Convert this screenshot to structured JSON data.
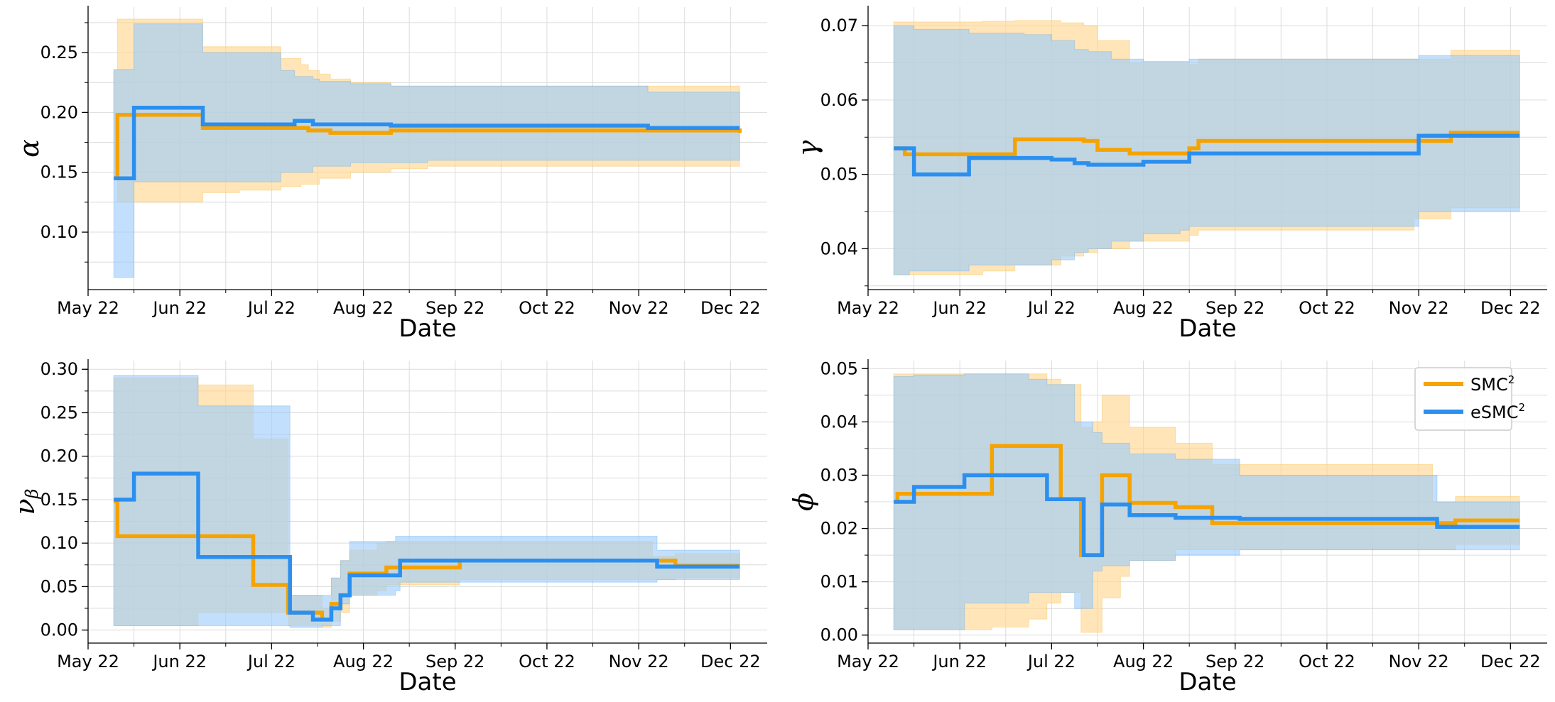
{
  "colors": {
    "smc2": "#f5a300",
    "esmc2": "#2b8fef",
    "smc2_band": "#ffd58a",
    "esmc2_band": "#9ccdfb",
    "grid": "#dcdcdc"
  },
  "legend": [
    {
      "base": "SMC",
      "sup": "2",
      "series": "SMC2"
    },
    {
      "base": "eSMC",
      "sup": "2",
      "series": "eSMC2"
    }
  ],
  "chart_data": [
    {
      "id": "alpha",
      "type": "line",
      "ylabel": "α",
      "ylabel_sub": "",
      "xlabel": "Date",
      "x_ticks": [
        "May 22",
        "Jun 22",
        "Jul 22",
        "Aug 22",
        "Sep 22",
        "Oct 22",
        "Nov 22",
        "Dec 22"
      ],
      "xlim": [
        0,
        7.4
      ],
      "ylim": [
        0.052,
        0.288
      ],
      "y_ticks": [
        0.1,
        0.15,
        0.2,
        0.25
      ],
      "y_tick_labels": [
        "0.10",
        "0.15",
        "0.20",
        "0.25"
      ],
      "series": [
        {
          "name": "SMC2",
          "x": [
            0.28,
            0.32,
            0.5,
            1.2,
            1.25,
            1.65,
            2.1,
            2.32,
            2.4,
            2.52,
            2.64,
            2.86,
            3.3,
            3.7,
            7.1
          ],
          "y": [
            0.145,
            0.198,
            0.198,
            0.198,
            0.187,
            0.187,
            0.187,
            0.187,
            0.185,
            0.185,
            0.183,
            0.183,
            0.185,
            0.185,
            0.183
          ],
          "lower": [
            0.145,
            0.125,
            0.125,
            0.125,
            0.133,
            0.135,
            0.138,
            0.14,
            0.14,
            0.145,
            0.145,
            0.15,
            0.153,
            0.155,
            0.155
          ],
          "upper": [
            0.235,
            0.278,
            0.278,
            0.278,
            0.255,
            0.255,
            0.245,
            0.24,
            0.235,
            0.232,
            0.228,
            0.225,
            0.222,
            0.222,
            0.222
          ]
        },
        {
          "name": "eSMC2",
          "x": [
            0.28,
            0.46,
            0.5,
            1.2,
            1.25,
            1.65,
            2.1,
            2.25,
            2.45,
            2.52,
            2.86,
            3.3,
            3.7,
            6.1,
            7.1
          ],
          "y": [
            0.145,
            0.145,
            0.204,
            0.204,
            0.19,
            0.19,
            0.19,
            0.193,
            0.19,
            0.19,
            0.19,
            0.189,
            0.189,
            0.187,
            0.187
          ],
          "lower": [
            0.062,
            0.062,
            0.142,
            0.142,
            0.142,
            0.142,
            0.15,
            0.15,
            0.155,
            0.155,
            0.158,
            0.158,
            0.16,
            0.16,
            0.16
          ],
          "upper": [
            0.236,
            0.236,
            0.274,
            0.274,
            0.25,
            0.25,
            0.235,
            0.23,
            0.228,
            0.226,
            0.224,
            0.222,
            0.222,
            0.217,
            0.217
          ]
        }
      ]
    },
    {
      "id": "gamma",
      "type": "line",
      "ylabel": "γ",
      "ylabel_sub": "",
      "xlabel": "Date",
      "x_ticks": [
        "May 22",
        "Jun 22",
        "Jul 22",
        "Aug 22",
        "Sep 22",
        "Oct 22",
        "Nov 22",
        "Dec 22"
      ],
      "xlim": [
        0,
        7.4
      ],
      "ylim": [
        0.0345,
        0.0725
      ],
      "y_ticks": [
        0.04,
        0.05,
        0.06,
        0.07
      ],
      "y_tick_labels": [
        "0.04",
        "0.05",
        "0.06",
        "0.07"
      ],
      "series": [
        {
          "name": "SMC2",
          "x": [
            0.28,
            0.4,
            1.25,
            1.6,
            2.1,
            2.35,
            2.5,
            2.85,
            3.5,
            3.6,
            5.95,
            6.35,
            7.1
          ],
          "y": [
            0.0535,
            0.0527,
            0.0527,
            0.0547,
            0.0547,
            0.0545,
            0.0533,
            0.0528,
            0.0535,
            0.0545,
            0.0545,
            0.0556,
            0.0556
          ],
          "lower": [
            0.0365,
            0.0365,
            0.037,
            0.0378,
            0.039,
            0.0395,
            0.04,
            0.041,
            0.0418,
            0.0425,
            0.044,
            0.0455,
            0.0455
          ],
          "upper": [
            0.0705,
            0.0705,
            0.0706,
            0.0707,
            0.0704,
            0.07,
            0.068,
            0.065,
            0.0648,
            0.0655,
            0.0655,
            0.0667,
            0.0667
          ]
        },
        {
          "name": "eSMC2",
          "x": [
            0.28,
            0.45,
            0.5,
            1.0,
            1.1,
            1.7,
            2.0,
            2.25,
            2.4,
            2.65,
            3.0,
            3.4,
            3.5,
            6.0,
            7.1
          ],
          "y": [
            0.0535,
            0.0535,
            0.05,
            0.05,
            0.0522,
            0.0522,
            0.052,
            0.0515,
            0.0513,
            0.0513,
            0.0517,
            0.0517,
            0.0528,
            0.0552,
            0.0552
          ],
          "lower": [
            0.0365,
            0.037,
            0.037,
            0.037,
            0.0378,
            0.0378,
            0.0385,
            0.0395,
            0.04,
            0.041,
            0.042,
            0.0425,
            0.043,
            0.045,
            0.045
          ],
          "upper": [
            0.07,
            0.07,
            0.0695,
            0.0695,
            0.069,
            0.0688,
            0.068,
            0.0668,
            0.0665,
            0.0655,
            0.0652,
            0.0652,
            0.0655,
            0.066,
            0.066
          ]
        }
      ]
    },
    {
      "id": "nu_beta",
      "type": "line",
      "ylabel": "ν",
      "ylabel_sub": "β",
      "xlabel": "Date",
      "x_ticks": [
        "May 22",
        "Jun 22",
        "Jul 22",
        "Aug 22",
        "Sep 22",
        "Oct 22",
        "Nov 22",
        "Dec 22"
      ],
      "xlim": [
        0,
        7.4
      ],
      "ylim": [
        -0.015,
        0.31
      ],
      "y_ticks": [
        0.0,
        0.05,
        0.1,
        0.15,
        0.2,
        0.25,
        0.3
      ],
      "y_tick_labels": [
        "0.00",
        "0.05",
        "0.10",
        "0.15",
        "0.20",
        "0.25",
        "0.30"
      ],
      "series": [
        {
          "name": "SMC2",
          "x": [
            0.28,
            0.32,
            1.2,
            1.25,
            1.8,
            1.85,
            2.18,
            2.32,
            2.45,
            2.55,
            2.65,
            2.75,
            2.85,
            3.15,
            3.25,
            3.65,
            4.05,
            6.15,
            6.4,
            7.1
          ],
          "y": [
            0.148,
            0.108,
            0.108,
            0.108,
            0.052,
            0.052,
            0.02,
            0.02,
            0.02,
            0.012,
            0.03,
            0.04,
            0.065,
            0.065,
            0.072,
            0.072,
            0.08,
            0.08,
            0.074,
            0.074
          ],
          "lower": [
            0.005,
            0.005,
            0.02,
            0.02,
            0.02,
            0.02,
            0.005,
            0.005,
            0.005,
            0.003,
            0.01,
            0.02,
            0.04,
            0.045,
            0.052,
            0.052,
            0.058,
            0.058,
            0.06,
            0.06
          ],
          "upper": [
            0.29,
            0.29,
            0.282,
            0.282,
            0.22,
            0.22,
            0.04,
            0.04,
            0.04,
            0.025,
            0.06,
            0.08,
            0.092,
            0.1,
            0.102,
            0.102,
            0.102,
            0.085,
            0.088,
            0.088
          ]
        },
        {
          "name": "eSMC2",
          "x": [
            0.28,
            0.45,
            0.5,
            1.15,
            1.2,
            1.85,
            1.9,
            2.2,
            2.32,
            2.45,
            2.55,
            2.65,
            2.75,
            2.85,
            3.35,
            3.4,
            6.15,
            6.2,
            7.1
          ],
          "y": [
            0.15,
            0.15,
            0.18,
            0.18,
            0.084,
            0.084,
            0.084,
            0.02,
            0.02,
            0.012,
            0.012,
            0.025,
            0.04,
            0.063,
            0.063,
            0.08,
            0.08,
            0.073,
            0.073
          ],
          "lower": [
            0.005,
            0.005,
            0.005,
            0.005,
            0.005,
            0.005,
            0.005,
            0.003,
            0.003,
            0.003,
            0.005,
            0.005,
            0.03,
            0.04,
            0.045,
            0.055,
            0.055,
            0.058,
            0.058
          ],
          "upper": [
            0.293,
            0.293,
            0.293,
            0.293,
            0.258,
            0.258,
            0.258,
            0.04,
            0.04,
            0.04,
            0.04,
            0.06,
            0.08,
            0.102,
            0.108,
            0.108,
            0.108,
            0.092,
            0.092
          ]
        }
      ]
    },
    {
      "id": "phi",
      "type": "line",
      "ylabel": "ϕ",
      "ylabel_sub": "",
      "xlabel": "Date",
      "x_ticks": [
        "May 22",
        "Jun 22",
        "Jul 22",
        "Aug 22",
        "Sep 22",
        "Oct 22",
        "Nov 22",
        "Dec 22"
      ],
      "xlim": [
        0,
        7.4
      ],
      "ylim": [
        -0.0015,
        0.0515
      ],
      "y_ticks": [
        0.0,
        0.01,
        0.02,
        0.03,
        0.04,
        0.05
      ],
      "y_tick_labels": [
        "0.00",
        "0.01",
        "0.02",
        "0.03",
        "0.04",
        "0.05"
      ],
      "series": [
        {
          "name": "SMC2",
          "x": [
            0.28,
            0.32,
            1.2,
            1.35,
            1.75,
            1.95,
            2.1,
            2.32,
            2.45,
            2.55,
            2.75,
            2.85,
            3.05,
            3.35,
            3.75,
            6.15,
            6.4,
            7.1
          ],
          "y": [
            0.025,
            0.0265,
            0.0265,
            0.0355,
            0.0355,
            0.0355,
            0.0255,
            0.015,
            0.015,
            0.03,
            0.03,
            0.0248,
            0.0248,
            0.024,
            0.021,
            0.021,
            0.0215,
            0.0215
          ],
          "lower": [
            0.001,
            0.001,
            0.001,
            0.0015,
            0.003,
            0.006,
            0.008,
            0.0005,
            0.0005,
            0.007,
            0.011,
            0.014,
            0.014,
            0.016,
            0.016,
            0.016,
            0.017,
            0.017
          ],
          "upper": [
            0.049,
            0.049,
            0.049,
            0.049,
            0.049,
            0.048,
            0.047,
            0.039,
            0.04,
            0.045,
            0.045,
            0.039,
            0.039,
            0.036,
            0.032,
            0.025,
            0.026,
            0.026
          ]
        },
        {
          "name": "eSMC2",
          "x": [
            0.28,
            0.42,
            0.5,
            0.95,
            1.05,
            1.35,
            1.75,
            1.95,
            2.25,
            2.35,
            2.45,
            2.55,
            2.75,
            2.85,
            3.05,
            3.35,
            4.05,
            6.15,
            6.2,
            7.1
          ],
          "y": [
            0.025,
            0.025,
            0.0278,
            0.0278,
            0.03,
            0.03,
            0.03,
            0.0255,
            0.0255,
            0.015,
            0.015,
            0.0245,
            0.0245,
            0.0225,
            0.0225,
            0.022,
            0.0218,
            0.0218,
            0.0203,
            0.0203
          ],
          "lower": [
            0.001,
            0.001,
            0.001,
            0.001,
            0.006,
            0.006,
            0.008,
            0.008,
            0.005,
            0.005,
            0.012,
            0.013,
            0.013,
            0.014,
            0.014,
            0.015,
            0.016,
            0.016,
            0.016,
            0.016
          ],
          "upper": [
            0.0485,
            0.0485,
            0.0488,
            0.0488,
            0.049,
            0.049,
            0.048,
            0.047,
            0.04,
            0.04,
            0.038,
            0.036,
            0.036,
            0.034,
            0.034,
            0.033,
            0.03,
            0.03,
            0.025,
            0.025
          ]
        }
      ]
    }
  ]
}
